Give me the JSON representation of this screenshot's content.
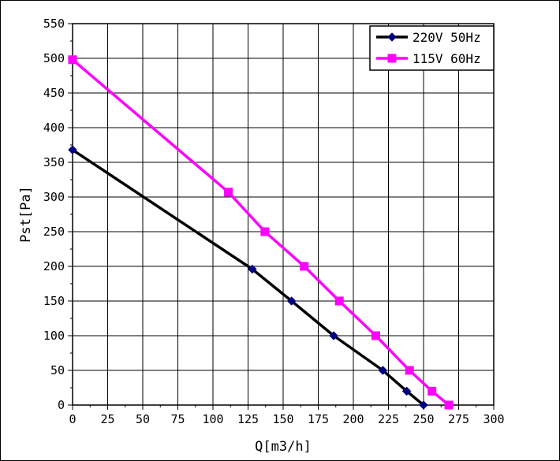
{
  "chart_data": {
    "type": "line",
    "xlabel": "Q[m3/h]",
    "ylabel": "Pst[Pa]",
    "xlim": [
      0,
      300
    ],
    "ylim": [
      0,
      550
    ],
    "xticks": [
      0,
      25,
      50,
      75,
      100,
      125,
      150,
      175,
      200,
      225,
      250,
      275,
      300
    ],
    "yticks": [
      0,
      50,
      100,
      150,
      200,
      250,
      300,
      350,
      400,
      450,
      500,
      550
    ],
    "grid": true,
    "legend_position": "top-right",
    "series": [
      {
        "name": "220V 50Hz",
        "color": "#000000",
        "marker": "diamond",
        "marker_color": "#000080",
        "x": [
          0,
          128,
          156,
          186,
          221,
          238,
          250
        ],
        "y": [
          368,
          196,
          150,
          100,
          50,
          20,
          0
        ]
      },
      {
        "name": "115V 60Hz",
        "color": "#ff00ff",
        "marker": "square",
        "marker_color": "#ff00ff",
        "x": [
          0,
          111,
          137,
          165,
          190,
          216,
          240,
          256,
          268
        ],
        "y": [
          498,
          307,
          250,
          200,
          150,
          100,
          50,
          20,
          0
        ]
      }
    ]
  }
}
